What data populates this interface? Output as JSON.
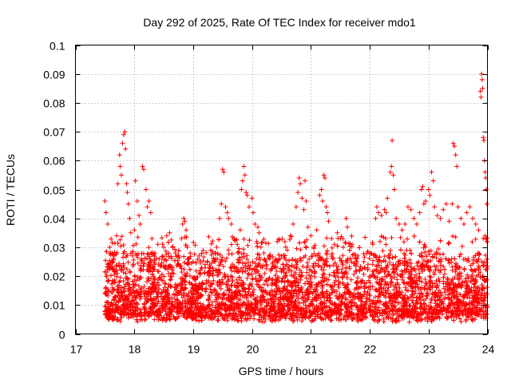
{
  "chart_data": {
    "type": "scatter",
    "title": "Day 292 of 2025, Rate Of TEC Index for receiver mdo1",
    "xlabel": "GPS time / hours",
    "ylabel": "ROTI / TECUs",
    "xlim": [
      17,
      24
    ],
    "ylim": [
      0,
      0.1
    ],
    "x_ticks": [
      "17",
      "18",
      "19",
      "20",
      "21",
      "22",
      "23",
      "24"
    ],
    "y_ticks": [
      "0",
      "0.01",
      "0.02",
      "0.03",
      "0.04",
      "0.05",
      "0.06",
      "0.07",
      "0.08",
      "0.09",
      "0.1"
    ],
    "grid": true,
    "marker": "+",
    "series": [
      {
        "name": "ROTI",
        "color": "#ff0000",
        "points": [
          [
            17.5,
            0.046
          ],
          [
            17.52,
            0.042
          ],
          [
            17.55,
            0.038
          ],
          [
            17.58,
            0.03
          ],
          [
            17.6,
            0.028
          ],
          [
            17.62,
            0.025
          ],
          [
            17.65,
            0.022
          ],
          [
            17.7,
            0.034
          ],
          [
            17.72,
            0.052
          ],
          [
            17.75,
            0.062
          ],
          [
            17.76,
            0.058
          ],
          [
            17.78,
            0.055
          ],
          [
            17.8,
            0.066
          ],
          [
            17.82,
            0.069
          ],
          [
            17.84,
            0.07
          ],
          [
            17.85,
            0.064
          ],
          [
            17.87,
            0.052
          ],
          [
            17.88,
            0.049
          ],
          [
            17.9,
            0.045
          ],
          [
            17.92,
            0.04
          ],
          [
            17.94,
            0.035
          ],
          [
            18.0,
            0.036
          ],
          [
            18.02,
            0.053
          ],
          [
            18.05,
            0.046
          ],
          [
            18.08,
            0.041
          ],
          [
            18.1,
            0.038
          ],
          [
            18.14,
            0.058
          ],
          [
            18.16,
            0.057
          ],
          [
            18.2,
            0.05
          ],
          [
            18.22,
            0.044
          ],
          [
            18.25,
            0.046
          ],
          [
            18.28,
            0.042
          ],
          [
            18.3,
            0.033
          ],
          [
            18.35,
            0.028
          ],
          [
            18.4,
            0.031
          ],
          [
            18.5,
            0.03
          ],
          [
            18.55,
            0.034
          ],
          [
            18.6,
            0.035
          ],
          [
            18.65,
            0.03
          ],
          [
            18.7,
            0.028
          ],
          [
            18.75,
            0.027
          ],
          [
            18.8,
            0.033
          ],
          [
            18.82,
            0.038
          ],
          [
            18.84,
            0.04
          ],
          [
            18.86,
            0.039
          ],
          [
            18.88,
            0.036
          ],
          [
            18.9,
            0.03
          ],
          [
            18.95,
            0.028
          ],
          [
            19.0,
            0.025
          ],
          [
            19.1,
            0.027
          ],
          [
            19.2,
            0.024
          ],
          [
            19.3,
            0.029
          ],
          [
            19.35,
            0.026
          ],
          [
            19.4,
            0.03
          ],
          [
            19.45,
            0.04
          ],
          [
            19.48,
            0.045
          ],
          [
            19.5,
            0.057
          ],
          [
            19.52,
            0.056
          ],
          [
            19.55,
            0.044
          ],
          [
            19.58,
            0.042
          ],
          [
            19.6,
            0.04
          ],
          [
            19.65,
            0.038
          ],
          [
            19.7,
            0.033
          ],
          [
            19.75,
            0.031
          ],
          [
            19.8,
            0.036
          ],
          [
            19.82,
            0.05
          ],
          [
            19.84,
            0.053
          ],
          [
            19.86,
            0.058
          ],
          [
            19.88,
            0.055
          ],
          [
            19.9,
            0.049
          ],
          [
            19.92,
            0.048
          ],
          [
            19.95,
            0.044
          ],
          [
            20.0,
            0.047
          ],
          [
            20.02,
            0.042
          ],
          [
            20.05,
            0.038
          ],
          [
            20.08,
            0.032
          ],
          [
            20.1,
            0.037
          ],
          [
            20.12,
            0.035
          ],
          [
            20.15,
            0.03
          ],
          [
            20.2,
            0.028
          ],
          [
            20.25,
            0.024
          ],
          [
            20.3,
            0.026
          ],
          [
            20.4,
            0.023
          ],
          [
            20.5,
            0.027
          ],
          [
            20.6,
            0.029
          ],
          [
            20.65,
            0.034
          ],
          [
            20.7,
            0.038
          ],
          [
            20.75,
            0.044
          ],
          [
            20.78,
            0.049
          ],
          [
            20.8,
            0.054
          ],
          [
            20.82,
            0.052
          ],
          [
            20.85,
            0.047
          ],
          [
            20.88,
            0.043
          ],
          [
            20.9,
            0.053
          ],
          [
            20.92,
            0.046
          ],
          [
            20.95,
            0.037
          ],
          [
            21.0,
            0.034
          ],
          [
            21.05,
            0.03
          ],
          [
            21.1,
            0.036
          ],
          [
            21.15,
            0.048
          ],
          [
            21.18,
            0.05
          ],
          [
            21.2,
            0.046
          ],
          [
            21.22,
            0.055
          ],
          [
            21.24,
            0.054
          ],
          [
            21.26,
            0.044
          ],
          [
            21.28,
            0.042
          ],
          [
            21.3,
            0.039
          ],
          [
            21.35,
            0.033
          ],
          [
            21.4,
            0.031
          ],
          [
            21.45,
            0.035
          ],
          [
            21.5,
            0.033
          ],
          [
            21.55,
            0.03
          ],
          [
            21.6,
            0.04
          ],
          [
            21.62,
            0.037
          ],
          [
            21.7,
            0.031
          ],
          [
            21.8,
            0.027
          ],
          [
            21.9,
            0.025
          ],
          [
            22.0,
            0.028
          ],
          [
            22.05,
            0.031
          ],
          [
            22.1,
            0.04
          ],
          [
            22.12,
            0.044
          ],
          [
            22.15,
            0.042
          ],
          [
            22.2,
            0.041
          ],
          [
            22.25,
            0.043
          ],
          [
            22.28,
            0.042
          ],
          [
            22.3,
            0.047
          ],
          [
            22.35,
            0.056
          ],
          [
            22.37,
            0.058
          ],
          [
            22.38,
            0.067
          ],
          [
            22.4,
            0.055
          ],
          [
            22.42,
            0.05
          ],
          [
            22.45,
            0.04
          ],
          [
            22.5,
            0.038
          ],
          [
            22.55,
            0.036
          ],
          [
            22.6,
            0.038
          ],
          [
            22.65,
            0.044
          ],
          [
            22.7,
            0.043
          ],
          [
            22.75,
            0.04
          ],
          [
            22.8,
            0.038
          ],
          [
            22.85,
            0.042
          ],
          [
            22.88,
            0.05
          ],
          [
            22.9,
            0.051
          ],
          [
            22.92,
            0.045
          ],
          [
            22.95,
            0.046
          ],
          [
            23.0,
            0.05
          ],
          [
            23.02,
            0.048
          ],
          [
            23.05,
            0.056
          ],
          [
            23.08,
            0.053
          ],
          [
            23.1,
            0.044
          ],
          [
            23.15,
            0.041
          ],
          [
            23.2,
            0.04
          ],
          [
            23.25,
            0.043
          ],
          [
            23.3,
            0.045
          ],
          [
            23.35,
            0.039
          ],
          [
            23.4,
            0.045
          ],
          [
            23.42,
            0.066
          ],
          [
            23.44,
            0.065
          ],
          [
            23.46,
            0.062
          ],
          [
            23.48,
            0.058
          ],
          [
            23.5,
            0.044
          ],
          [
            23.55,
            0.04
          ],
          [
            23.6,
            0.038
          ],
          [
            23.65,
            0.042
          ],
          [
            23.7,
            0.044
          ],
          [
            23.75,
            0.04
          ],
          [
            23.8,
            0.038
          ],
          [
            23.85,
            0.036
          ],
          [
            23.88,
            0.084
          ],
          [
            23.89,
            0.082
          ],
          [
            23.9,
            0.09
          ],
          [
            23.91,
            0.088
          ],
          [
            23.92,
            0.085
          ],
          [
            23.93,
            0.068
          ],
          [
            23.94,
            0.067
          ],
          [
            23.95,
            0.06
          ],
          [
            23.96,
            0.056
          ],
          [
            23.97,
            0.054
          ],
          [
            23.98,
            0.05
          ],
          [
            23.99,
            0.045
          ]
        ],
        "note": "Dense background cloud: ~4800 points between GPS hours 17.5 and 24.0 with ROTI mostly 0.003-0.03 TECUs"
      }
    ]
  }
}
